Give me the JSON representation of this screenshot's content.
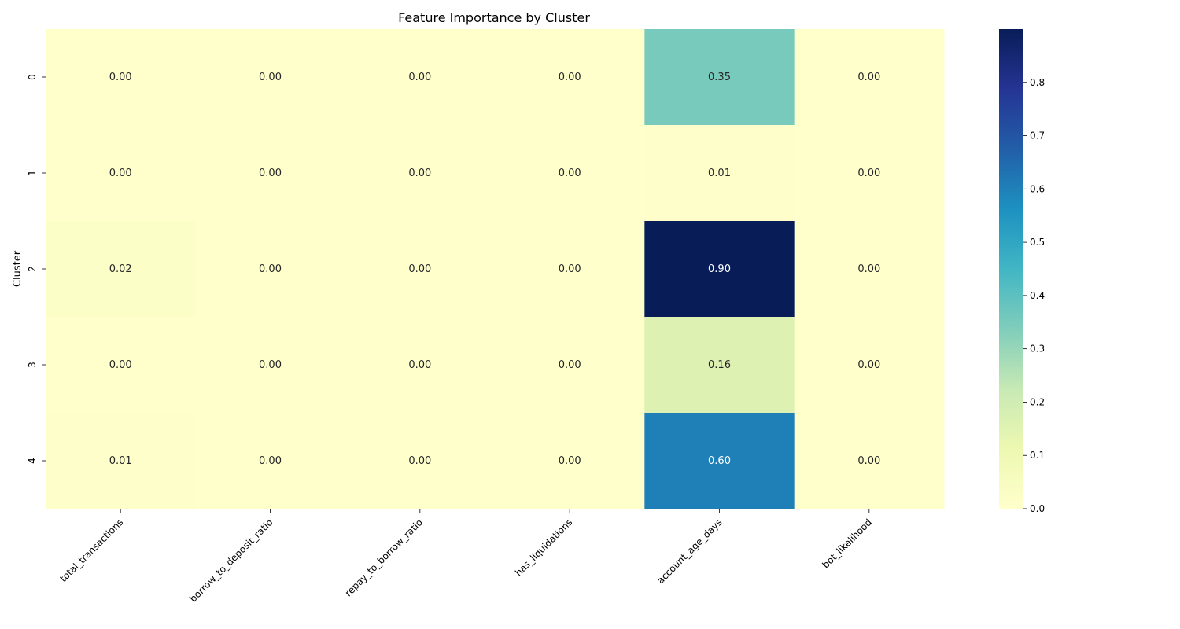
{
  "chart_data": {
    "type": "heatmap",
    "title": "Feature Importance by Cluster",
    "xlabel": "",
    "ylabel": "Cluster",
    "columns": [
      "total_transactions",
      "borrow_to_deposit_ratio",
      "repay_to_borrow_ratio",
      "has_liquidations",
      "account_age_days",
      "bot_likelihood"
    ],
    "rows": [
      "0",
      "1",
      "2",
      "3",
      "4"
    ],
    "values": [
      [
        0.0,
        0.0,
        0.0,
        0.0,
        0.35,
        0.0
      ],
      [
        0.0,
        0.0,
        0.0,
        0.0,
        0.01,
        0.0
      ],
      [
        0.02,
        0.0,
        0.0,
        0.0,
        0.9,
        0.0
      ],
      [
        0.0,
        0.0,
        0.0,
        0.0,
        0.16,
        0.0
      ],
      [
        0.01,
        0.0,
        0.0,
        0.0,
        0.6,
        0.0
      ]
    ],
    "value_labels": [
      [
        "0.00",
        "0.00",
        "0.00",
        "0.00",
        "0.35",
        "0.00"
      ],
      [
        "0.00",
        "0.00",
        "0.00",
        "0.00",
        "0.01",
        "0.00"
      ],
      [
        "0.02",
        "0.00",
        "0.00",
        "0.00",
        "0.90",
        "0.00"
      ],
      [
        "0.00",
        "0.00",
        "0.00",
        "0.00",
        "0.16",
        "0.00"
      ],
      [
        "0.01",
        "0.00",
        "0.00",
        "0.00",
        "0.60",
        "0.00"
      ]
    ],
    "colormap": "YlGnBu",
    "color_range": [
      0,
      0.9
    ],
    "colorbar_ticks": [
      "0.0",
      "0.1",
      "0.2",
      "0.3",
      "0.4",
      "0.5",
      "0.6",
      "0.7",
      "0.8"
    ],
    "colorbar_tick_values": [
      0.0,
      0.1,
      0.2,
      0.3,
      0.4,
      0.5,
      0.6,
      0.7,
      0.8
    ],
    "grid": false,
    "legend": "colorbar-right"
  }
}
